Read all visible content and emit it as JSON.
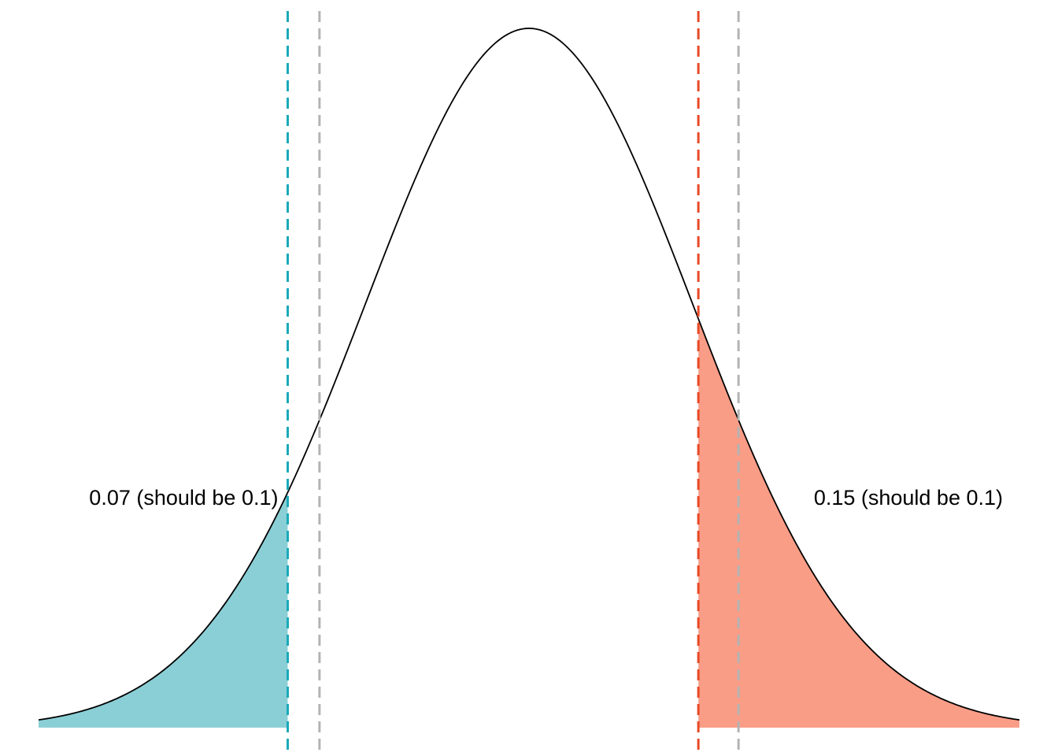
{
  "chart_data": {
    "type": "area",
    "title": "",
    "xlabel": "",
    "ylabel": "",
    "distribution": "normal",
    "mean": 0,
    "sd": 1,
    "xlim": [
      -3,
      3
    ],
    "curve": {
      "x": [
        -3.0,
        -2.5,
        -2.0,
        -1.5,
        -1.0,
        -0.5,
        0.0,
        0.5,
        1.0,
        1.5,
        2.0,
        2.5,
        3.0
      ],
      "y": [
        0.0044,
        0.0175,
        0.054,
        0.1295,
        0.242,
        0.3521,
        0.3989,
        0.3521,
        0.242,
        0.1295,
        0.054,
        0.0175,
        0.0044
      ]
    },
    "reference_lines": [
      {
        "name": "lower-reference",
        "x": -1.2816,
        "color": "#b3b3b3",
        "style": "dashed"
      },
      {
        "name": "upper-reference",
        "x": 1.2816,
        "color": "#b3b3b3",
        "style": "dashed"
      }
    ],
    "shaded_regions": [
      {
        "name": "lower-tail",
        "from": -3,
        "to": -1.476,
        "area": 0.07,
        "fill": "#8bcfd6",
        "line_color": "#1aa9b8",
        "label": "0.07 (should be 0.1)"
      },
      {
        "name": "upper-tail",
        "from": 1.036,
        "to": 3,
        "area": 0.15,
        "fill": "#fa9d87",
        "line_color": "#e84a27",
        "label": "0.15 (should be 0.1)"
      }
    ],
    "grid": false,
    "legend": "none",
    "curve_color": "#000000"
  }
}
